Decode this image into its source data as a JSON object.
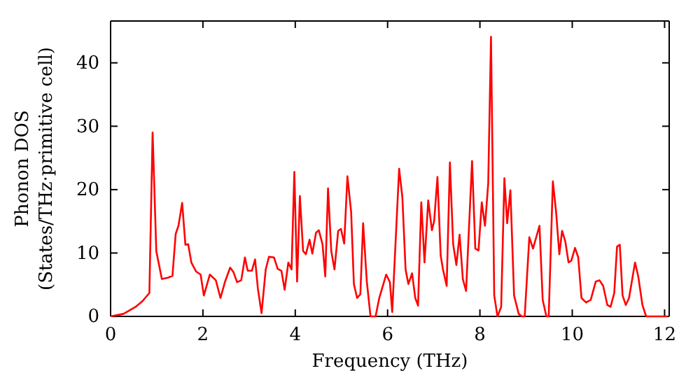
{
  "chart_data": {
    "type": "line",
    "xlabel": "Frequency (THz)",
    "ylabel": "Phonon DOS\n(States/THz·primitive cell)",
    "xlim": [
      0,
      12.1
    ],
    "ylim": [
      0,
      46.6
    ],
    "xticks": [
      0,
      2,
      4,
      6,
      8,
      10,
      12
    ],
    "yticks": [
      0,
      10,
      20,
      30,
      40
    ],
    "grid": false,
    "line_style": "solid",
    "marker": "none",
    "series": [
      {
        "color": "#ff0000",
        "x": [
          0,
          0.28,
          0.54,
          0.69,
          0.84,
          0.91,
          0.99,
          1.11,
          1.24,
          1.34,
          1.41,
          1.47,
          1.55,
          1.62,
          1.68,
          1.75,
          1.85,
          1.95,
          2.02,
          2.15,
          2.28,
          2.38,
          2.48,
          2.59,
          2.66,
          2.74,
          2.83,
          2.91,
          2.97,
          3.06,
          3.13,
          3.19,
          3.27,
          3.36,
          3.43,
          3.54,
          3.62,
          3.7,
          3.77,
          3.85,
          3.92,
          3.98,
          4.04,
          4.1,
          4.17,
          4.23,
          4.31,
          4.37,
          4.45,
          4.51,
          4.59,
          4.65,
          4.71,
          4.78,
          4.85,
          4.93,
          4.99,
          5.06,
          5.13,
          5.21,
          5.27,
          5.34,
          5.41,
          5.47,
          5.55,
          5.63,
          5.74,
          5.82,
          5.97,
          6.05,
          6.1,
          6.25,
          6.32,
          6.39,
          6.45,
          6.53,
          6.6,
          6.66,
          6.73,
          6.8,
          6.88,
          6.96,
          7.01,
          7.08,
          7.15,
          7.2,
          7.28,
          7.35,
          7.42,
          7.49,
          7.56,
          7.63,
          7.7,
          7.83,
          7.9,
          7.97,
          8.04,
          8.11,
          8.18,
          8.24,
          8.31,
          8.38,
          8.46,
          8.53,
          8.59,
          8.66,
          8.74,
          8.84,
          8.91,
          8.97,
          9.07,
          9.15,
          9.29,
          9.36,
          9.44,
          9.49,
          9.58,
          9.65,
          9.72,
          9.78,
          9.85,
          9.92,
          9.98,
          10.06,
          10.13,
          10.2,
          10.3,
          10.4,
          10.51,
          10.59,
          10.67,
          10.76,
          10.83,
          10.91,
          10.97,
          11.03,
          11.09,
          11.16,
          11.23,
          11.36,
          11.43,
          11.52,
          11.6,
          12.07
        ],
        "values": [
          0,
          0.4,
          1.5,
          2.4,
          3.7,
          29,
          10.3,
          5.9,
          6.1,
          6.4,
          13,
          14.3,
          17.9,
          11.3,
          11.4,
          8.5,
          7.1,
          6.6,
          3.3,
          6.6,
          5.7,
          2.9,
          5.5,
          7.7,
          7,
          5.4,
          5.7,
          9.3,
          7.2,
          7.2,
          9,
          4.4,
          0.5,
          7.4,
          9.4,
          9.3,
          7.5,
          7.2,
          4.2,
          8.5,
          7.4,
          22.8,
          5.5,
          19,
          10.3,
          9.8,
          12.1,
          9.9,
          13.2,
          13.6,
          11.4,
          6.3,
          20.2,
          10.3,
          7.4,
          13.5,
          13.8,
          11.5,
          22.1,
          16.5,
          5.1,
          2.9,
          3.5,
          14.7,
          5.5,
          0,
          0,
          2.9,
          6.6,
          5.4,
          0.7,
          23.3,
          18.8,
          7.4,
          5.1,
          6.8,
          2.9,
          1.7,
          18,
          8.5,
          18.3,
          13.6,
          15.1,
          22,
          9.6,
          7.4,
          4.8,
          24.3,
          11.4,
          8.1,
          12.9,
          5.9,
          4,
          24.5,
          10.7,
          10.4,
          18,
          14.3,
          21,
          44.1,
          3.3,
          0,
          1.5,
          21.8,
          14.7,
          19.9,
          3.3,
          0.4,
          0,
          0,
          12.5,
          10.7,
          14.3,
          2.6,
          0,
          0,
          21.3,
          16.5,
          9.8,
          13.5,
          11.8,
          8.5,
          8.8,
          10.8,
          9.3,
          2.9,
          2.2,
          2.6,
          5.5,
          5.7,
          4.8,
          1.8,
          1.5,
          3.7,
          11,
          11.3,
          3.3,
          1.8,
          2.9,
          8.5,
          6.3,
          1.8,
          0,
          0
        ]
      }
    ]
  }
}
